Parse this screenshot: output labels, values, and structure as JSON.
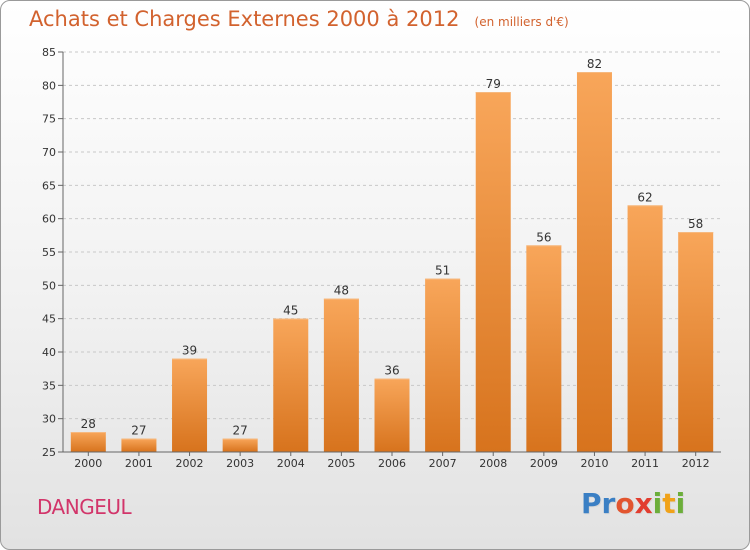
{
  "header": {
    "title": "Achats et Charges Externes 2000 à 2012",
    "subtitle": "(en milliers d'€)"
  },
  "footer": {
    "town": "DANGEUL",
    "logo_letters": [
      "P",
      "r",
      "o",
      "x",
      "i",
      "t",
      "i"
    ],
    "logo_colors": [
      "#3a7fc4",
      "#3a7fc4",
      "#e2552f",
      "#e23d2f",
      "#6cae3a",
      "#f0a21a",
      "#6cae3a"
    ]
  },
  "colors": {
    "bar_light": "#f8a65a",
    "bar_dark": "#d7731d",
    "accent": "#d2622e"
  },
  "chart_data": {
    "type": "bar",
    "title": "Achats et Charges Externes 2000 à 2012",
    "subtitle": "(en milliers d'€)",
    "categories": [
      "2000",
      "2001",
      "2002",
      "2003",
      "2004",
      "2005",
      "2006",
      "2007",
      "2008",
      "2009",
      "2010",
      "2011",
      "2012"
    ],
    "values": [
      28,
      27,
      39,
      27,
      45,
      48,
      36,
      51,
      79,
      56,
      82,
      62,
      58
    ],
    "ylim": [
      25,
      85
    ],
    "yticks": [
      25,
      30,
      35,
      40,
      45,
      50,
      55,
      60,
      65,
      70,
      75,
      80,
      85
    ],
    "grid": "horizontal dashed",
    "xlabel": "",
    "ylabel": ""
  }
}
